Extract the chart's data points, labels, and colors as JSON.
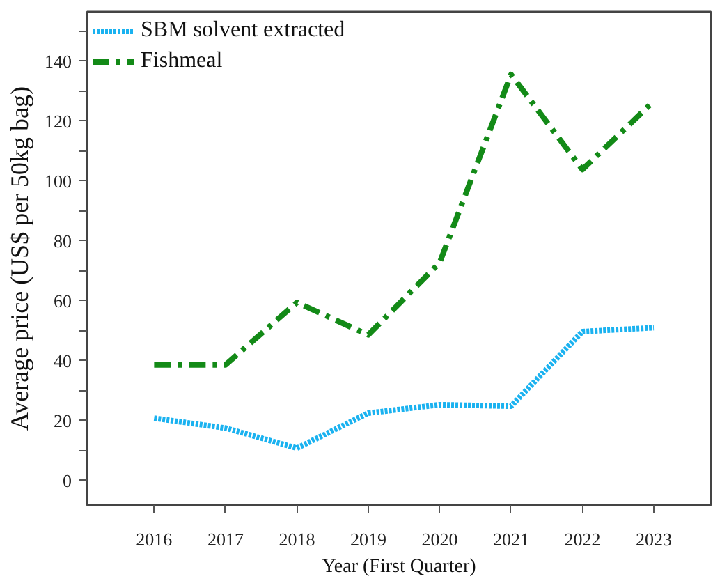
{
  "chart_data": {
    "type": "line",
    "xlabel": "Year (First Quarter)",
    "ylabel": "Average price (US$ per 50kg bag)",
    "x": [
      2016,
      2017,
      2018,
      2019,
      2020,
      2021,
      2022,
      2023
    ],
    "series": [
      {
        "name": "SBM solvent extracted",
        "color": "#1ab2f0",
        "line_style": "dotted",
        "values": [
          20.8,
          17.5,
          10.8,
          22.5,
          25.3,
          24.8,
          49.7,
          51.0
        ]
      },
      {
        "name": "Fishmeal",
        "color": "#138a17",
        "line_style": "dashed",
        "values": [
          38.6,
          38.6,
          59.4,
          48.6,
          72.7,
          135.5,
          103.8,
          126.6
        ]
      }
    ],
    "xlim": [
      2015.06,
      2023.8
    ],
    "xticks": [
      2016,
      2017,
      2018,
      2019,
      2020,
      2021,
      2022,
      2023
    ],
    "ylim": [
      -8.2,
      156.4
    ],
    "yticks": [
      0,
      {
        "value": 10,
        "label": null
      },
      20,
      {
        "value": 30,
        "label": null
      },
      40,
      {
        "value": 50,
        "label": null
      },
      60,
      {
        "value": 70,
        "label": null
      },
      80,
      {
        "value": 90,
        "label": null
      },
      100,
      {
        "value": 110,
        "label": null
      },
      120,
      {
        "value": 130,
        "label": null
      },
      140,
      {
        "value": 150,
        "label": null
      }
    ],
    "grid": false,
    "legend": "top left",
    "marker": "none"
  }
}
